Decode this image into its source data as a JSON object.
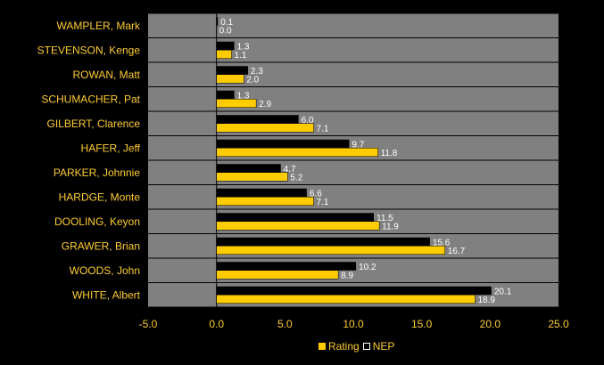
{
  "colors": {
    "background": "#000000",
    "plot_area": "#808080",
    "text": "#FFCC33",
    "data_label": "#FFFFFF",
    "rating": "#FFCC00",
    "nep": "#000000"
  },
  "chart_data": {
    "type": "bar",
    "orientation": "horizontal",
    "categories": [
      "WAMPLER, Mark",
      "STEVENSON, Kenge",
      "ROWAN, Matt",
      "SCHUMACHER, Pat",
      "GILBERT, Clarence",
      "HAFER, Jeff",
      "PARKER, Johnnie",
      "HARDGE, Monte",
      "DOOLING, Keyon",
      "GRAWER, Brian",
      "WOODS, John",
      "WHITE, Albert"
    ],
    "series": [
      {
        "name": "NEP",
        "color": "#000000",
        "values": [
          0.1,
          1.3,
          2.3,
          1.3,
          6.0,
          9.7,
          4.7,
          6.6,
          11.5,
          15.6,
          10.2,
          20.1
        ],
        "labels": [
          "0.1",
          "1.3",
          "2.3",
          "1.3",
          "6.0",
          "9.7",
          "4.7",
          "6.6",
          "11.5",
          "15.6",
          "10.2",
          "20.1"
        ]
      },
      {
        "name": "Rating",
        "color": "#FFCC00",
        "values": [
          0.0,
          1.1,
          2.0,
          2.9,
          7.1,
          11.8,
          5.2,
          7.1,
          11.9,
          16.7,
          8.9,
          18.9
        ],
        "labels": [
          "0.0",
          "1.1",
          "2.0",
          "2.9",
          "7.1",
          "11.8",
          "5.2",
          "7.1",
          "11.9",
          "16.7",
          "8.9",
          "18.9"
        ]
      }
    ],
    "xlim": [
      -5.0,
      25.0
    ],
    "ticks": [
      -5.0,
      0.0,
      5.0,
      10.0,
      15.0,
      20.0,
      25.0
    ],
    "tick_labels": [
      "-5.0",
      "0.0",
      "5.0",
      "10.0",
      "15.0",
      "20.0",
      "25.0"
    ],
    "grid": true,
    "legend_position": "bottom-center"
  },
  "legend": {
    "rating_label": "Rating",
    "nep_label": "NEP"
  }
}
